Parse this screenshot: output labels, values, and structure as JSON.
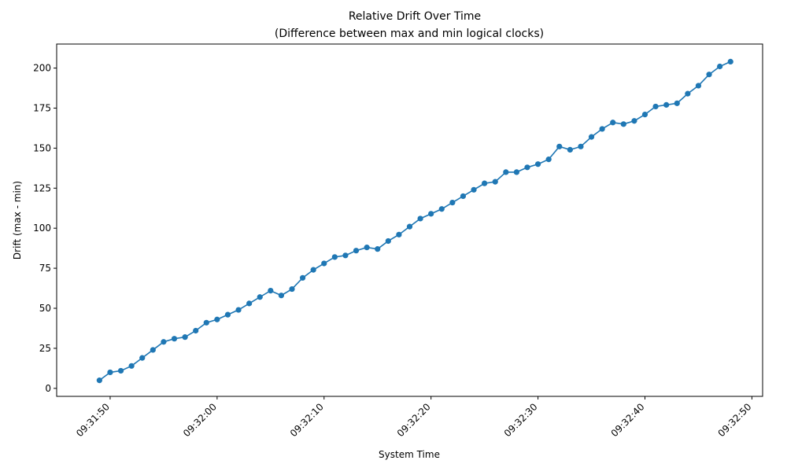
{
  "chart_data": {
    "type": "line",
    "title": "Relative Drift Over Time",
    "subtitle": "(Difference between max and min logical clocks)",
    "xlabel": "System Time",
    "ylabel": "Drift (max - min)",
    "x_start": "09:31:49",
    "x_step_seconds": 1,
    "xlim": [
      "09:31:45",
      "09:32:51"
    ],
    "ylim": [
      -5,
      215
    ],
    "yticks": [
      0,
      25,
      50,
      75,
      100,
      125,
      150,
      175,
      200
    ],
    "xticks": [
      "09:31:50",
      "09:32:00",
      "09:32:10",
      "09:32:20",
      "09:32:30",
      "09:32:40",
      "09:32:50"
    ],
    "grid": false,
    "line_color": "#1f77b4",
    "marker": "circle",
    "series": [
      {
        "values": [
          5,
          10,
          11,
          14,
          19,
          24,
          29,
          31,
          32,
          36,
          41,
          43,
          46,
          49,
          53,
          57,
          61,
          58,
          62,
          69,
          74,
          78,
          82,
          83,
          86,
          88,
          87,
          92,
          96,
          101,
          106,
          109,
          112,
          116,
          120,
          124,
          128,
          129,
          135,
          135,
          138,
          140,
          143,
          151,
          149,
          151,
          157,
          162,
          166,
          165,
          167,
          171,
          176,
          177,
          178,
          184,
          189,
          196,
          201,
          204
        ]
      }
    ]
  }
}
